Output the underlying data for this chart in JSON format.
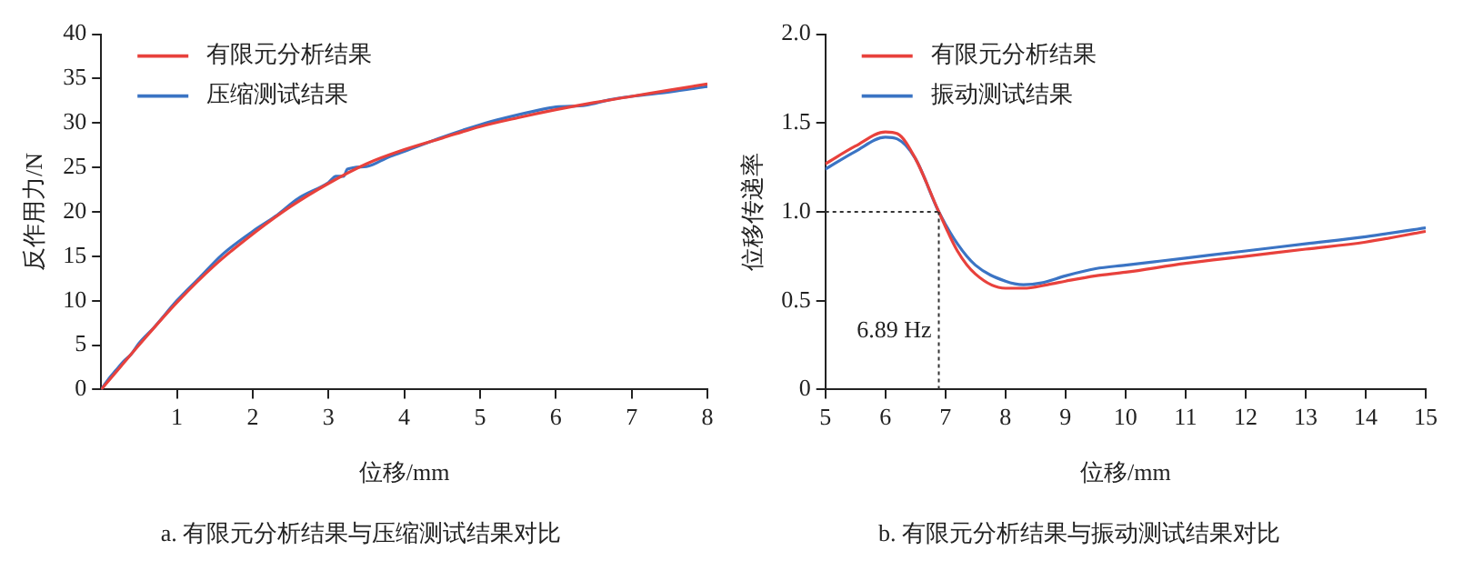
{
  "chart_data": [
    {
      "type": "line",
      "title": "a. 有限元分析结果与压缩测试结果对比",
      "xlabel": "位移/mm",
      "ylabel": "反作用力/N",
      "xlim": [
        0,
        8
      ],
      "xticks": [
        1,
        2,
        3,
        4,
        5,
        6,
        7,
        8
      ],
      "ylim": [
        0,
        40
      ],
      "yticks": [
        0,
        5,
        10,
        15,
        20,
        25,
        30,
        35,
        40
      ],
      "grid": false,
      "legend": "top left",
      "marker": "none",
      "line_style": "solid",
      "series": [
        {
          "name": "有限元分析结果",
          "color": "#e8413c",
          "x": [
            0,
            0.25,
            0.5,
            1,
            1.5,
            2,
            2.5,
            3,
            3.5,
            4,
            4.5,
            5,
            5.5,
            6,
            6.5,
            7,
            7.5,
            8
          ],
          "values": [
            0,
            2.5,
            5,
            9.8,
            14,
            17.5,
            20.6,
            23.2,
            25.4,
            27,
            28.3,
            29.6,
            30.6,
            31.5,
            32.3,
            33,
            33.7,
            34.4
          ]
        },
        {
          "name": "压缩测试结果",
          "color": "#3b74c4",
          "x": [
            0,
            0.1,
            0.2,
            0.3,
            0.4,
            0.5,
            0.7,
            1,
            1.3,
            1.6,
            2,
            2.3,
            2.6,
            3,
            3.1,
            3.2,
            3.25,
            3.5,
            3.8,
            4,
            4.5,
            5,
            5.3,
            5.8,
            6,
            6.4,
            6.7,
            7,
            7.5,
            8
          ],
          "values": [
            0,
            1.2,
            2.2,
            3.2,
            4,
            5.2,
            7,
            10,
            12.6,
            15.2,
            17.8,
            19.5,
            21.5,
            23.3,
            24,
            24,
            24.8,
            25.1,
            26.2,
            26.8,
            28.4,
            29.8,
            30.5,
            31.5,
            31.8,
            32,
            32.6,
            33,
            33.5,
            34.1
          ]
        }
      ]
    },
    {
      "type": "line",
      "title": "b. 有限元分析结果与振动测试结果对比",
      "xlabel": "位移/mm",
      "ylabel": "位移传递率",
      "xlim": [
        5,
        15
      ],
      "xticks": [
        5,
        6,
        7,
        8,
        9,
        10,
        11,
        12,
        13,
        14,
        15
      ],
      "ylim": [
        0,
        2
      ],
      "yticks": [
        0,
        0.5,
        {
          "value": 1,
          "label": "1.0"
        },
        1.5,
        {
          "value": 2,
          "label": "2.0"
        }
      ],
      "grid": false,
      "legend": "top left",
      "marker": "none",
      "line_style": "solid",
      "ref_lines": [
        {
          "axis": "y",
          "value": 1,
          "line_style": "dotted",
          "color": "#333333"
        },
        {
          "axis": "x",
          "value": 6.89,
          "label": "6.89 Hz",
          "line_style": "dotted",
          "color": "#333333"
        }
      ],
      "series": [
        {
          "name": "有限元分析结果",
          "color": "#e8413c",
          "x": [
            5,
            5.5,
            6,
            6.2,
            6.5,
            6.89,
            7.2,
            7.5,
            8,
            8.3,
            8.7,
            9,
            9.5,
            10,
            11,
            12,
            13,
            14,
            15
          ],
          "values": [
            1.27,
            1.37,
            1.45,
            1.44,
            1.3,
            1.0,
            0.78,
            0.65,
            0.57,
            0.57,
            0.59,
            0.61,
            0.64,
            0.66,
            0.71,
            0.75,
            0.79,
            0.83,
            0.89
          ]
        },
        {
          "name": "振动测试结果",
          "color": "#3b74c4",
          "x": [
            5,
            5.5,
            6,
            6.2,
            6.5,
            6.89,
            7.2,
            7.5,
            8,
            8.3,
            8.6,
            9,
            9.5,
            10,
            11,
            12,
            13,
            14,
            15
          ],
          "values": [
            1.24,
            1.34,
            1.42,
            1.41,
            1.3,
            1.0,
            0.82,
            0.7,
            0.61,
            0.59,
            0.6,
            0.64,
            0.68,
            0.7,
            0.74,
            0.78,
            0.82,
            0.86,
            0.91
          ]
        }
      ]
    }
  ]
}
